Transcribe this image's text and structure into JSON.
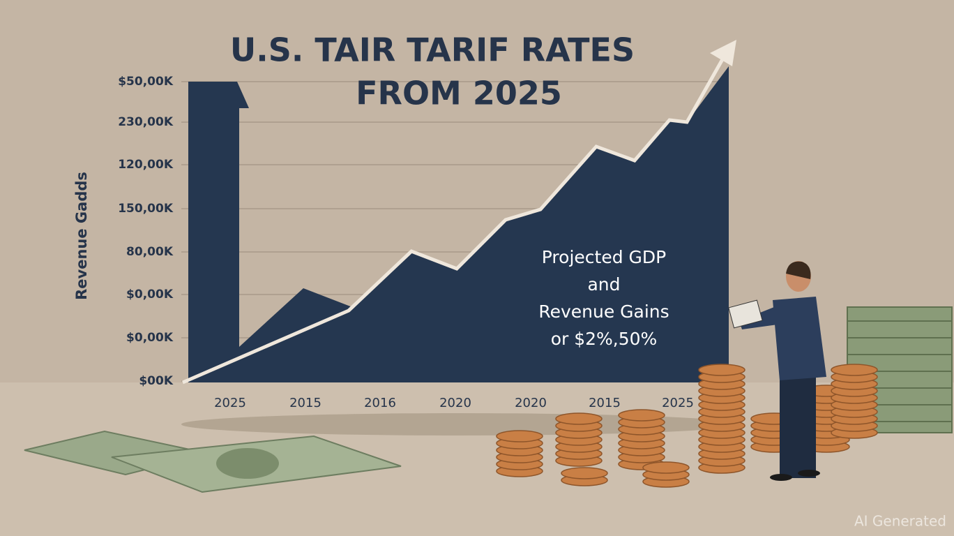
{
  "title": [
    "U.S. TAIR TARIF RATES",
    "FROM 2025"
  ],
  "y_axis_label": "Revenue Gadds",
  "y_labels": [
    "$50,00K",
    "230,00K",
    "120,00K",
    "150,00K",
    "80,00K",
    "$0,00K",
    "$0,00K",
    "$00K"
  ],
  "x_labels": [
    "2025",
    "2015",
    "2016",
    "2020",
    "2020",
    "2015",
    "2025"
  ],
  "annotation": [
    "Projected GDP",
    "and",
    "Revenue Gains",
    "or  $2%,50%"
  ],
  "watermark": "AI Generated"
}
